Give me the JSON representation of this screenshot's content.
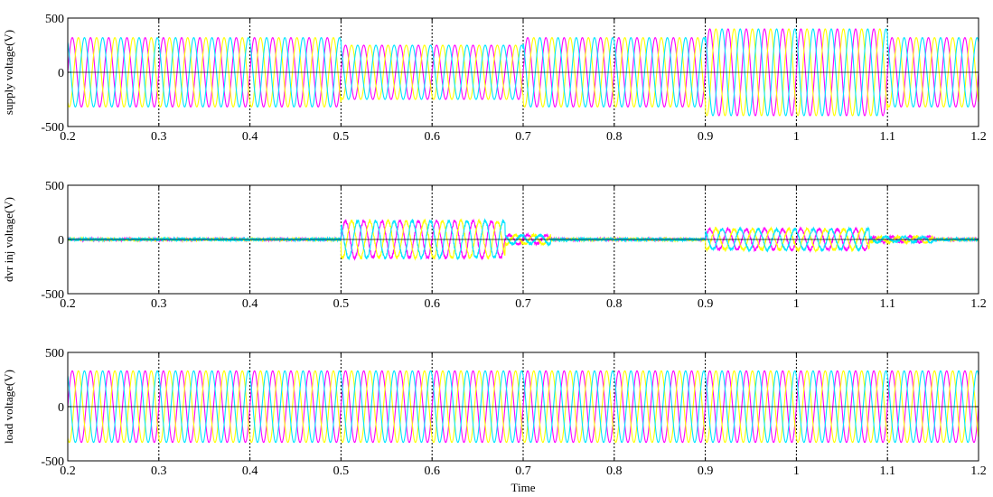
{
  "chart_data": [
    {
      "type": "line",
      "ylabel": "supply voltage(V)",
      "xlabel": "",
      "xlim": [
        0.2,
        1.2
      ],
      "ylim": [
        -500,
        500
      ],
      "xticks": [
        "0.2",
        "0.3",
        "0.4",
        "0.5",
        "0.6",
        "0.7",
        "0.8",
        "0.9",
        "1",
        "1.1",
        "1.2"
      ],
      "yticks": [
        "-500",
        "0",
        "500"
      ],
      "grid": true,
      "series": [
        {
          "color": "#ff00ff",
          "phase_deg": 0
        },
        {
          "color": "#ffff00",
          "phase_deg": -120
        },
        {
          "color": "#00e5ff",
          "phase_deg": 120
        }
      ],
      "frequency_hz": 50,
      "amplitude_segments": [
        {
          "x_start": 0.2,
          "x_end": 0.5,
          "amplitude": 320
        },
        {
          "x_start": 0.5,
          "x_end": 0.7,
          "amplitude": 250
        },
        {
          "x_start": 0.7,
          "x_end": 0.9,
          "amplitude": 320
        },
        {
          "x_start": 0.9,
          "x_end": 1.1,
          "amplitude": 400
        },
        {
          "x_start": 1.1,
          "x_end": 1.2,
          "amplitude": 320
        }
      ]
    },
    {
      "type": "line",
      "ylabel": "dvr inj voltage(V)",
      "xlabel": "",
      "xlim": [
        0.2,
        1.2
      ],
      "ylim": [
        -500,
        500
      ],
      "xticks": [
        "0.2",
        "0.3",
        "0.4",
        "0.5",
        "0.6",
        "0.7",
        "0.8",
        "0.9",
        "1",
        "1.1",
        "1.2"
      ],
      "yticks": [
        "-500",
        "0",
        "500"
      ],
      "grid": true,
      "series": [
        {
          "color": "#ff00ff",
          "phase_deg": 0
        },
        {
          "color": "#ffff00",
          "phase_deg": -120
        },
        {
          "color": "#00e5ff",
          "phase_deg": 120
        }
      ],
      "frequency_hz": 50,
      "noise_amplitude": 15,
      "amplitude_segments": [
        {
          "x_start": 0.2,
          "x_end": 0.5,
          "amplitude": 0
        },
        {
          "x_start": 0.5,
          "x_end": 0.68,
          "amplitude": 170
        },
        {
          "x_start": 0.68,
          "x_end": 0.73,
          "amplitude": 40
        },
        {
          "x_start": 0.73,
          "x_end": 0.9,
          "amplitude": 0
        },
        {
          "x_start": 0.9,
          "x_end": 1.08,
          "amplitude": 95
        },
        {
          "x_start": 1.08,
          "x_end": 1.15,
          "amplitude": 25
        },
        {
          "x_start": 1.15,
          "x_end": 1.2,
          "amplitude": 0
        }
      ]
    },
    {
      "type": "line",
      "ylabel": "load voltage(V)",
      "xlabel": "Time",
      "xlim": [
        0.2,
        1.2
      ],
      "ylim": [
        -500,
        500
      ],
      "xticks": [
        "0.2",
        "0.3",
        "0.4",
        "0.5",
        "0.6",
        "0.7",
        "0.8",
        "0.9",
        "1",
        "1.1",
        "1.2"
      ],
      "yticks": [
        "-500",
        "0",
        "500"
      ],
      "grid": true,
      "series": [
        {
          "color": "#ff00ff",
          "phase_deg": 0
        },
        {
          "color": "#ffff00",
          "phase_deg": -120
        },
        {
          "color": "#00e5ff",
          "phase_deg": 120
        }
      ],
      "frequency_hz": 50,
      "amplitude_segments": [
        {
          "x_start": 0.2,
          "x_end": 1.2,
          "amplitude": 330
        }
      ]
    }
  ]
}
